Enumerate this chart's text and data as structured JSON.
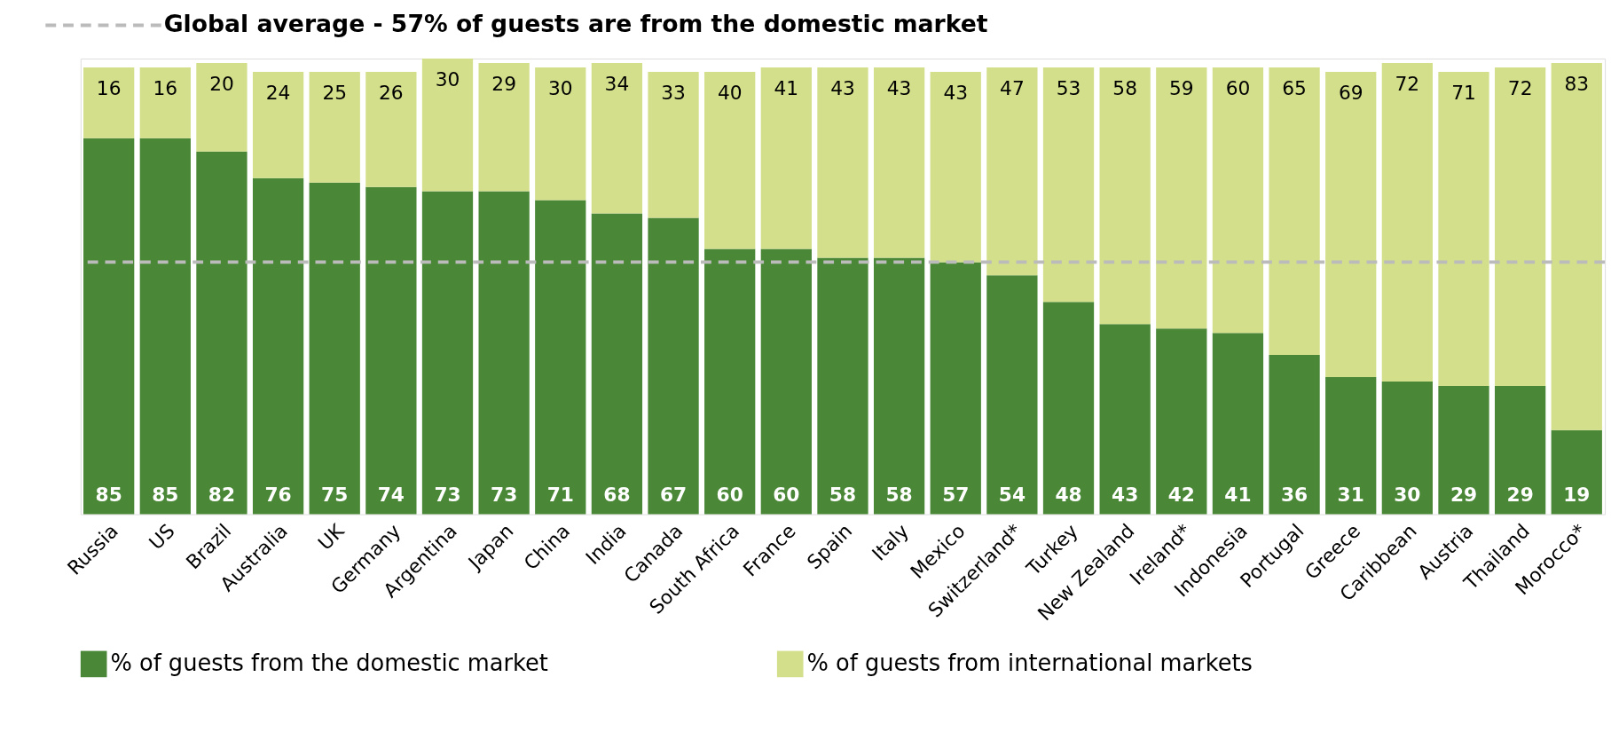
{
  "chart_data": {
    "type": "bar",
    "stacked": true,
    "data_labels": true,
    "legend": "bottom",
    "categories": [
      "Russia",
      "US",
      "Brazil",
      "Australia",
      "UK",
      "Germany",
      "Argentina",
      "Japan",
      "China",
      "India",
      "Canada",
      "South Africa",
      "France",
      "Spain",
      "Italy",
      "Mexico",
      "Switzerland*",
      "Turkey",
      "New Zealand",
      "Ireland*",
      "Indonesia",
      "Portugal",
      "Greece",
      "Caribbean",
      "Austria",
      "Thailand",
      "Morocco*"
    ],
    "series": [
      {
        "name": "% of guests from the domestic market",
        "color": "#4a8736",
        "values": [
          85,
          85,
          82,
          76,
          75,
          74,
          73,
          73,
          71,
          68,
          67,
          60,
          60,
          58,
          58,
          57,
          54,
          48,
          43,
          42,
          41,
          36,
          31,
          30,
          29,
          29,
          19
        ]
      },
      {
        "name": "% of guests from international markets",
        "color": "#d3df8a",
        "values": [
          16,
          16,
          20,
          24,
          25,
          26,
          30,
          29,
          30,
          34,
          33,
          40,
          41,
          43,
          43,
          43,
          47,
          53,
          58,
          59,
          60,
          65,
          69,
          72,
          71,
          72,
          83
        ]
      }
    ],
    "ref_lines": [
      {
        "axis": "y",
        "value": 57,
        "label": "Global average - 57% of guests are from the domestic market",
        "color": "#bbbbbb",
        "line_style": "dashed"
      }
    ]
  }
}
